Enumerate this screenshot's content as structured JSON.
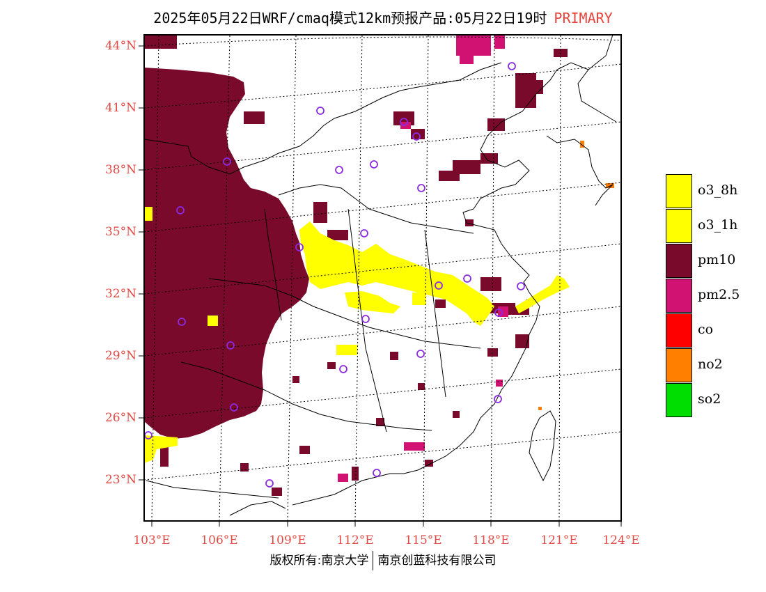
{
  "title": {
    "main": "2025年05月22日WRF/cmaq模式12km预报产品:05月22日19时",
    "tag": "PRIMARY"
  },
  "axes": {
    "lat_labels": [
      "44°N",
      "41°N",
      "38°N",
      "35°N",
      "32°N",
      "29°N",
      "26°N",
      "23°N"
    ],
    "lon_labels": [
      "103°E",
      "106°E",
      "109°E",
      "112°E",
      "115°E",
      "118°E",
      "121°E",
      "124°E"
    ]
  },
  "legend": [
    {
      "label": "o3_8h",
      "color": "#ffff00"
    },
    {
      "label": "o3_1h",
      "color": "#ffff00"
    },
    {
      "label": "pm10",
      "color": "#7a0a2c"
    },
    {
      "label": "pm2.5",
      "color": "#d11273"
    },
    {
      "label": "co",
      "color": "#ff0000"
    },
    {
      "label": "no2",
      "color": "#ff8000"
    },
    {
      "label": "so2",
      "color": "#00dd00"
    }
  ],
  "footer": {
    "left": "版权所有:南京大学",
    "right": "南京创蓝科技有限公司"
  },
  "colors": {
    "pm10": "#7a0a2c",
    "pm25": "#d11273",
    "o3": "#ffff00",
    "no2": "#ff8000",
    "station": "#8a2be2",
    "axis_label": "#e24a44"
  }
}
